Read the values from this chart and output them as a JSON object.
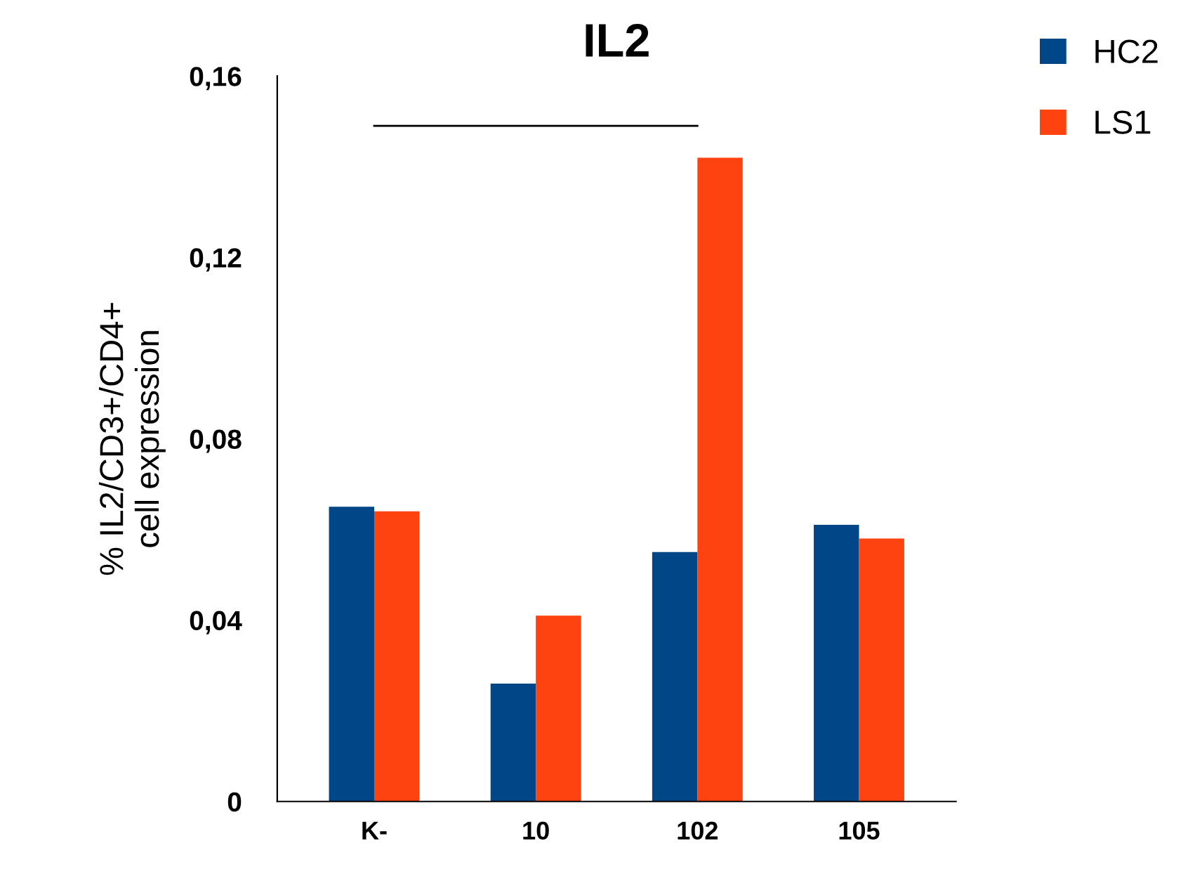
{
  "chart_data": {
    "type": "bar",
    "title": "IL2",
    "ylabel": "% IL2/CD3+/CD4+\ncell expression",
    "categories": [
      "K-",
      "10",
      "102",
      "105"
    ],
    "series": [
      {
        "name": "HC2",
        "color": "#014686",
        "values": [
          0.065,
          0.026,
          0.055,
          0.061
        ]
      },
      {
        "name": "LS1",
        "color": "#fe4311",
        "values": [
          0.064,
          0.041,
          0.142,
          0.058
        ]
      },
      {
        "type": "line",
        "color": "#000000",
        "values": [
          0.149,
          0.149,
          0.149,
          null
        ]
      }
    ],
    "ylim": [
      0,
      0.16
    ],
    "yticks": [
      {
        "value": 0,
        "label": "0"
      },
      {
        "value": 0.04,
        "label": "0,04"
      },
      {
        "value": 0.08,
        "label": "0,08"
      },
      {
        "value": 0.12,
        "label": "0,12"
      },
      {
        "value": 0.16,
        "label": "0,16"
      }
    ],
    "grid": false,
    "legend": "top right"
  }
}
